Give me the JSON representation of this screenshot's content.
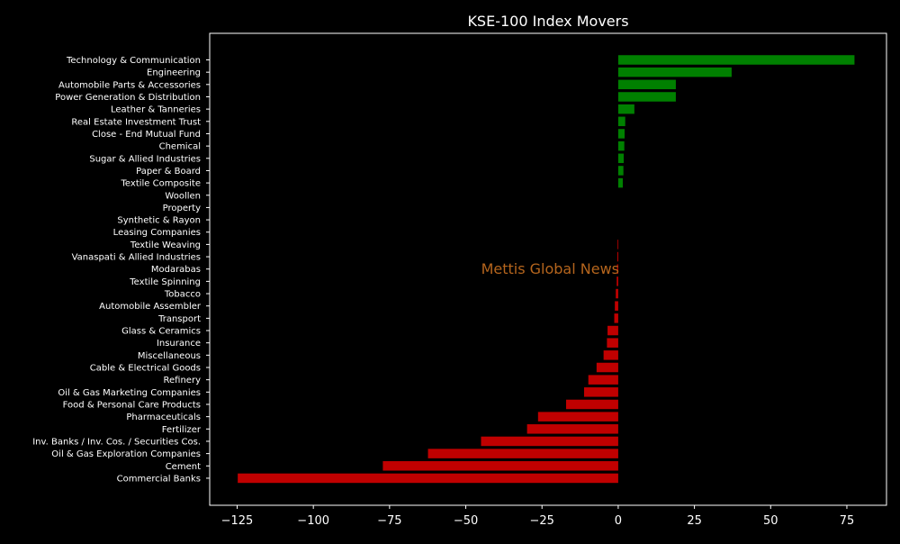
{
  "chart_data": {
    "type": "bar",
    "orientation": "horizontal",
    "title": "KSE-100 Index Movers",
    "watermark": "Mettis Global News",
    "xlabel": "",
    "ylabel": "",
    "xlim": [
      -134,
      88
    ],
    "xticks": [
      -125,
      -100,
      -75,
      -50,
      -25,
      0,
      25,
      50,
      75
    ],
    "xtick_labels": [
      "−125",
      "−100",
      "−75",
      "−50",
      "−25",
      "0",
      "25",
      "50",
      "75"
    ],
    "grid": false,
    "legend": false,
    "colors": {
      "positive": "#008000",
      "negative": "#c00000",
      "background": "#000000",
      "axes": "#ffffff",
      "watermark": "#b5651d"
    },
    "categories": [
      "Technology & Communication",
      "Engineering",
      "Automobile Parts & Accessories",
      "Power Generation & Distribution",
      "Leather & Tanneries",
      "Real Estate Investment Trust",
      "Close - End Mutual Fund",
      "Chemical",
      "Sugar & Allied Industries",
      "Paper & Board",
      "Textile Composite",
      "Woollen",
      "Property",
      "Synthetic & Rayon",
      "Leasing Companies",
      "Textile Weaving",
      "Vanaspati & Allied Industries",
      "Modarabas",
      "Textile Spinning",
      "Tobacco",
      "Automobile Assembler",
      "Transport",
      "Glass & Ceramics",
      "Insurance",
      "Miscellaneous",
      "Cable & Electrical Goods",
      "Refinery",
      "Oil & Gas Marketing Companies",
      "Food & Personal Care Products",
      "Pharmaceuticals",
      "Fertilizer",
      "Inv. Banks / Inv. Cos. / Securities Cos.",
      "Oil & Gas Exploration Companies",
      "Cement",
      "Commercial Banks"
    ],
    "values": [
      77.5,
      37.2,
      18.9,
      18.9,
      5.3,
      2.3,
      2.1,
      2.0,
      1.8,
      1.7,
      1.5,
      0,
      0,
      0,
      0,
      -0.2,
      -0.3,
      -0.4,
      -0.5,
      -0.8,
      -1.1,
      -1.3,
      -3.5,
      -3.7,
      -4.8,
      -7.1,
      -9.8,
      -11.2,
      -17.1,
      -26.3,
      -29.9,
      -45.0,
      -62.4,
      -77.2,
      -124.8
    ]
  }
}
